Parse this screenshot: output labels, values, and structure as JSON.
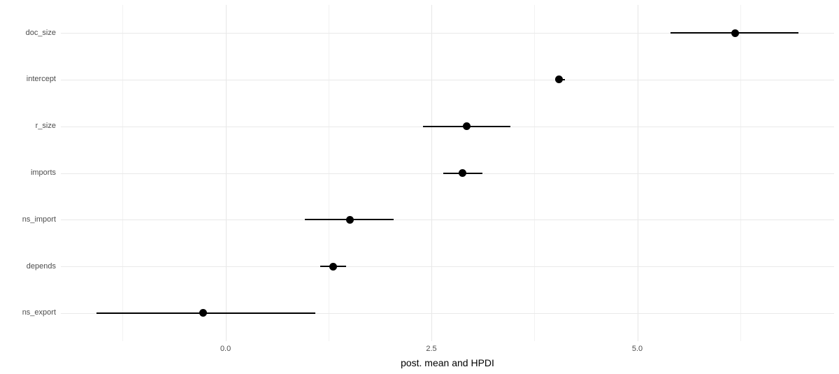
{
  "chart_data": {
    "type": "scatter",
    "subtype": "pointrange-coefficient-plot",
    "title": "",
    "xlabel": "post. mean and HPDI",
    "ylabel": "",
    "categories": [
      "doc_size",
      "intercept",
      "r_size",
      "imports",
      "ns_import",
      "depends",
      "ns_export"
    ],
    "series": [
      {
        "name": "posterior mean and HPDI",
        "points": [
          {
            "label": "doc_size",
            "mean": 6.19,
            "lower": 5.4,
            "upper": 6.96
          },
          {
            "label": "intercept",
            "mean": 4.05,
            "lower": 4.0,
            "upper": 4.12
          },
          {
            "label": "r_size",
            "mean": 2.93,
            "lower": 2.4,
            "upper": 3.46
          },
          {
            "label": "imports",
            "mean": 2.88,
            "lower": 2.64,
            "upper": 3.12
          },
          {
            "label": "ns_import",
            "mean": 1.51,
            "lower": 0.96,
            "upper": 2.04
          },
          {
            "label": "depends",
            "mean": 1.31,
            "lower": 1.15,
            "upper": 1.46
          },
          {
            "label": "ns_export",
            "mean": -0.27,
            "lower": -1.57,
            "upper": 1.09
          }
        ]
      }
    ],
    "xlim": [
      -2.0,
      7.39
    ],
    "x_major_ticks": [
      0.0,
      2.5,
      5.0
    ],
    "x_tick_labels": [
      "0.0",
      "2.5",
      "5.0"
    ],
    "x_minor_ticks": [
      -1.25,
      1.25,
      3.75,
      6.25
    ],
    "grid": "major-and-minor-x, major-y-per-category",
    "legend": false
  },
  "style": {
    "point_color": "#000000",
    "errorbar_color": "#000000",
    "grid_major_color": "#e6e6e6",
    "grid_minor_color": "#f2f2f2",
    "axis_text_color": "#4d4d4d",
    "axis_title_color": "#000000",
    "background_color": "#ffffff"
  }
}
